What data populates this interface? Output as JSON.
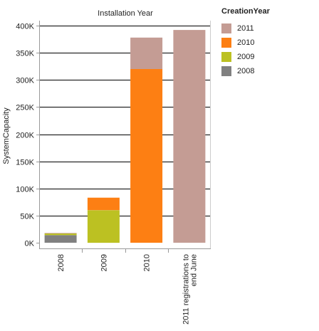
{
  "chart_data": {
    "type": "bar",
    "stacked": true,
    "title": "Installation Year",
    "xlabel": "",
    "ylabel": "SystemCapacity",
    "categories": [
      "2008",
      "2009",
      "2010",
      "2011 registrations to end June"
    ],
    "category_label_lines": [
      [
        "2008"
      ],
      [
        "2009"
      ],
      [
        "2010"
      ],
      [
        "2011 registrations to",
        "end June"
      ]
    ],
    "series": [
      {
        "name": "2008",
        "color": "#808080",
        "values": [
          14000,
          0,
          0,
          0
        ]
      },
      {
        "name": "2009",
        "color": "#bcc122",
        "values": [
          3000,
          60000,
          0,
          0
        ]
      },
      {
        "name": "2010",
        "color": "#fd7f13",
        "values": [
          0,
          23000,
          320000,
          0
        ]
      },
      {
        "name": "2011",
        "color": "#c49c94",
        "values": [
          1000,
          0,
          58000,
          392000
        ]
      }
    ],
    "ylim": [
      0,
      400000
    ],
    "yticks": [
      0,
      50000,
      100000,
      150000,
      200000,
      250000,
      300000,
      350000,
      400000
    ],
    "ytick_labels": [
      "0K",
      "50K",
      "100K",
      "150K",
      "200K",
      "250K",
      "300K",
      "350K",
      "400K"
    ],
    "grid": true,
    "legend_placement": "right"
  },
  "legend": {
    "title": "CreationYear",
    "items": [
      {
        "label": "2011",
        "color": "#c49c94"
      },
      {
        "label": "2010",
        "color": "#fd7f13"
      },
      {
        "label": "2009",
        "color": "#bcc122"
      },
      {
        "label": "2008",
        "color": "#808080"
      }
    ]
  }
}
